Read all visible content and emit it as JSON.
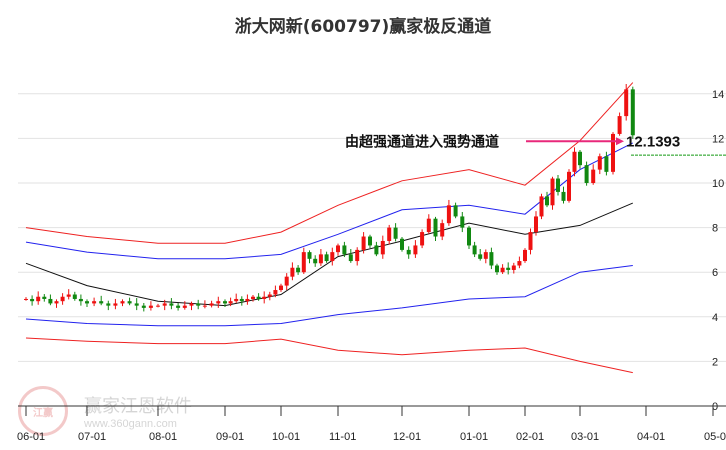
{
  "chart_data": {
    "type": "candlestick",
    "title": "浙大网新(600797)赢家极反通道",
    "x_ticks": [
      "06-01",
      "07-01",
      "08-01",
      "09-01",
      "10-01",
      "11-01",
      "12-01",
      "01-01",
      "02-01",
      "03-01",
      "04-01",
      "05-01"
    ],
    "y_ticks": [
      0,
      2,
      4,
      6,
      8,
      10,
      12,
      14
    ],
    "ylim": [
      0,
      15
    ],
    "grid": true,
    "candle_step_months": 0.1,
    "closes": [
      4.8,
      4.7,
      4.9,
      4.8,
      4.6,
      4.7,
      4.9,
      5.0,
      4.8,
      4.7,
      4.6,
      4.7,
      4.6,
      4.5,
      4.6,
      4.7,
      4.6,
      4.5,
      4.4,
      4.5,
      4.5,
      4.6,
      4.5,
      4.4,
      4.5,
      4.6,
      4.5,
      4.5,
      4.6,
      4.7,
      4.6,
      4.7,
      4.8,
      4.7,
      4.8,
      4.9,
      4.8,
      4.9,
      5.0,
      5.2,
      5.4,
      5.8,
      6.2,
      6.0,
      6.9,
      6.6,
      6.4,
      6.8,
      6.5,
      6.9,
      7.2,
      6.8,
      6.5,
      7.0,
      7.6,
      7.2,
      6.8,
      7.4,
      8.0,
      7.5,
      7.0,
      6.8,
      7.2,
      7.8,
      8.4,
      7.6,
      8.2,
      9.0,
      8.5,
      8.0,
      7.2,
      6.8,
      6.6,
      6.9,
      6.3,
      6.0,
      6.2,
      6.1,
      6.3,
      6.5,
      7.0,
      7.8,
      8.5,
      9.4,
      9.0,
      10.2,
      9.6,
      9.2,
      10.5,
      11.4,
      10.8,
      10.0,
      10.6,
      11.2,
      10.5,
      12.2,
      13.0,
      14.2,
      12.14
    ],
    "line_x_months": [
      0,
      1,
      2,
      3,
      4,
      5,
      6,
      7,
      8,
      9,
      9.8
    ],
    "series": [
      {
        "name": "upper-red",
        "color": "#ee2222",
        "values": [
          8.0,
          7.6,
          7.3,
          7.3,
          7.8,
          9.0,
          10.1,
          10.6,
          9.9,
          11.9,
          14.5
        ]
      },
      {
        "name": "upper-blue",
        "color": "#2222ee",
        "values": [
          7.35,
          6.9,
          6.6,
          6.6,
          6.8,
          7.7,
          8.8,
          9.0,
          8.6,
          10.6,
          11.8
        ]
      },
      {
        "name": "middle-black",
        "color": "#111111",
        "values": [
          6.4,
          5.4,
          4.7,
          4.5,
          5.0,
          6.7,
          7.4,
          8.2,
          7.7,
          8.1,
          9.1
        ]
      },
      {
        "name": "lower-blue",
        "color": "#2222ee",
        "values": [
          3.9,
          3.7,
          3.6,
          3.6,
          3.7,
          4.1,
          4.4,
          4.8,
          4.9,
          6.0,
          6.3
        ]
      },
      {
        "name": "lower-red",
        "color": "#ee2222",
        "values": [
          3.05,
          2.9,
          2.8,
          2.8,
          3.0,
          2.5,
          2.3,
          2.5,
          2.6,
          2.0,
          1.5
        ]
      }
    ],
    "annotation": {
      "text": "由超强通道进入强势通道",
      "value_label": "12.1393",
      "value": 12.1393,
      "arrow_color": "#e8287a"
    },
    "last_price_line": {
      "value": 11.25,
      "color": "#119911"
    },
    "colors": {
      "up": "#ee1111",
      "down": "#118811"
    }
  },
  "watermark": {
    "seal": "江赢恩家",
    "name": "赢家江恩软件",
    "url": "www.360gann.com"
  }
}
